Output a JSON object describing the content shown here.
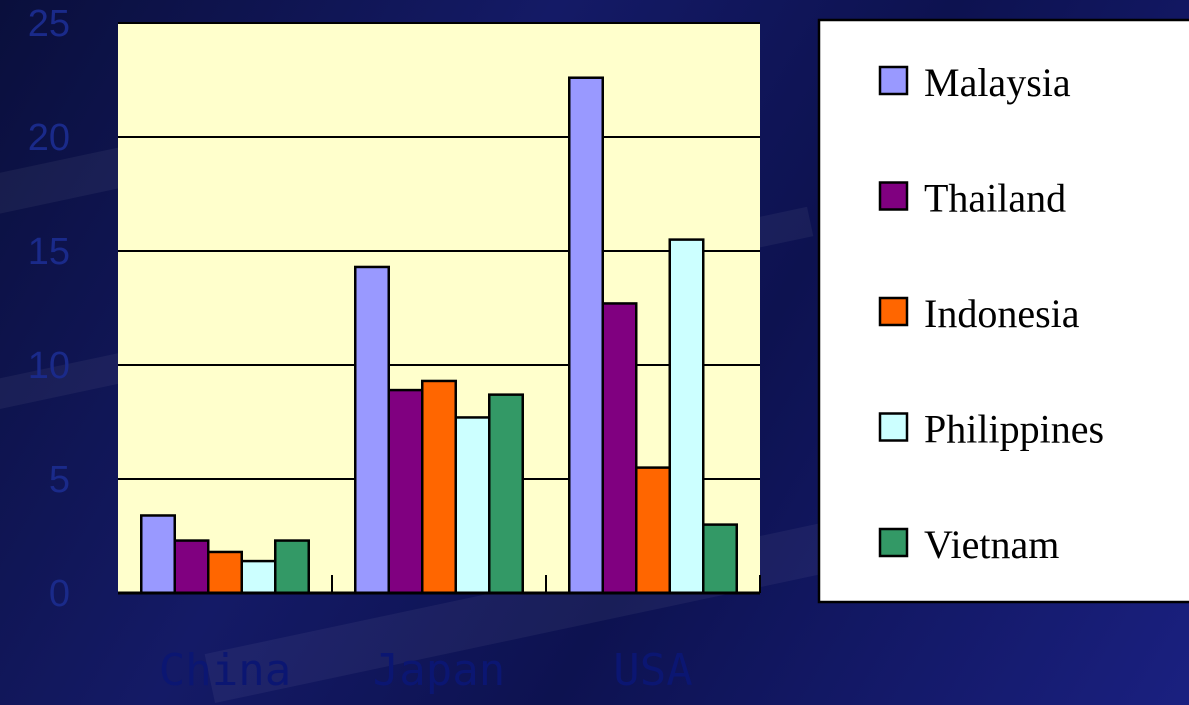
{
  "chart_data": {
    "type": "bar",
    "title": "",
    "xlabel": "",
    "ylabel": "",
    "categories": [
      "China",
      "Japan",
      "USA"
    ],
    "ylim": [
      0,
      25
    ],
    "yticks": [
      "0",
      "5",
      "10",
      "15",
      "20",
      "25"
    ],
    "grid": true,
    "legend_position": "right",
    "series": [
      {
        "name": "Malaysia",
        "color": "#9999FF",
        "values": [
          3.4,
          14.3,
          22.6
        ]
      },
      {
        "name": "Thailand",
        "color": "#800080",
        "values": [
          2.3,
          8.9,
          12.7
        ]
      },
      {
        "name": "Indonesia",
        "color": "#FF6600",
        "values": [
          1.8,
          9.3,
          5.5
        ]
      },
      {
        "name": "Philippines",
        "color": "#CCFFFF",
        "values": [
          1.4,
          7.7,
          15.5
        ]
      },
      {
        "name": "Vietnam",
        "color": "#339966",
        "values": [
          2.3,
          8.7,
          3.0
        ]
      }
    ],
    "plot_background": "#FFFFCC"
  }
}
